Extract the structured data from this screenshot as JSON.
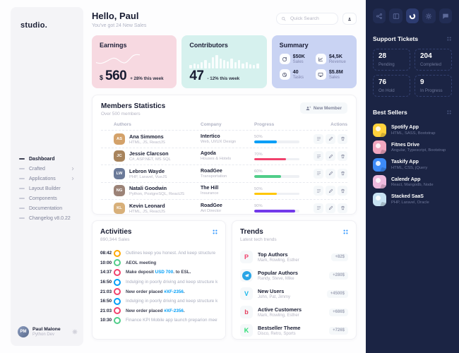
{
  "logo": "studio.",
  "nav": {
    "items": [
      {
        "label": "Dashboard",
        "active": true,
        "chevron": false
      },
      {
        "label": "Crafted",
        "active": false,
        "chevron": true
      },
      {
        "label": "Applications",
        "active": false,
        "chevron": true
      },
      {
        "label": "Layout Builder",
        "active": false,
        "chevron": false
      },
      {
        "label": "Components",
        "active": false,
        "chevron": false
      },
      {
        "label": "Documentation",
        "active": false,
        "chevron": false
      },
      {
        "label": "Changelog v8.0.22",
        "active": false,
        "chevron": false
      }
    ],
    "user": {
      "name": "Paul Malone",
      "role": "Python Dev",
      "initials": "PM"
    }
  },
  "header": {
    "greeting": "Hello, Paul",
    "subtitle": "You've got 24 New Sales",
    "search_placeholder": "Quick Search"
  },
  "cards": {
    "earnings": {
      "title": "Earnings",
      "currency": "$",
      "value": "560",
      "delta": "+ 28% this week",
      "bg": "#f7d9e1",
      "sparkline": [
        60,
        65,
        62,
        52,
        40,
        34,
        44,
        60,
        63,
        45,
        22,
        16,
        18
      ]
    },
    "contributors": {
      "title": "Contributors",
      "value": "47",
      "delta": "- 12% this week",
      "bg": "#d6f1ee",
      "bars": [
        25,
        35,
        30,
        45,
        55,
        40,
        75,
        90,
        65,
        55,
        48,
        65,
        45,
        55,
        35,
        45,
        28,
        25,
        35
      ]
    },
    "summary": {
      "title": "Summary",
      "bg": "#c9d3f3",
      "tiles": [
        {
          "icon": "sync",
          "value": "$50K",
          "label": "Sales"
        },
        {
          "icon": "chart",
          "value": "$4,5K",
          "label": "Revenue"
        },
        {
          "icon": "pie",
          "value": "40",
          "label": "Tasks"
        },
        {
          "icon": "monitor",
          "value": "$5.8M",
          "label": "Sales"
        }
      ]
    }
  },
  "members": {
    "title": "Members Statistics",
    "subtitle": "Over 500 members",
    "new_member_label": "New Member",
    "columns": {
      "authors": "Authors",
      "company": "Company",
      "progress": "Progress",
      "actions": "Actions"
    },
    "rows": [
      {
        "name": "Ana Simmons",
        "skills": "HTML, JS, ReactJS",
        "company": "Intertico",
        "field": "Web, UI/UX Design",
        "progress_label": "50%",
        "pct": 50,
        "color": "#009ef7",
        "initials": "AS",
        "avatar_bg": "#d4a26a"
      },
      {
        "name": "Jessie Clarcson",
        "skills": "C#, ASP.NET, MS SQL",
        "company": "Agoda",
        "field": "Houses & Hotels",
        "progress_label": "70%",
        "pct": 70,
        "color": "#f1416c",
        "initials": "JC",
        "avatar_bg": "#a8845c"
      },
      {
        "name": "Lebron Wayde",
        "skills": "PHP, Laravel, VueJS",
        "company": "RoadGee",
        "field": "Transportation",
        "progress_label": "60%",
        "pct": 60,
        "color": "#50cd89",
        "initials": "LW",
        "avatar_bg": "#6b7a99"
      },
      {
        "name": "Natali Goodwin",
        "skills": "Python, PostgreSQL, ReactJS",
        "company": "The Hill",
        "field": "Insurance",
        "progress_label": "50%",
        "pct": 50,
        "color": "#ffc700",
        "initials": "NG",
        "avatar_bg": "#9c8377"
      },
      {
        "name": "Kevin Leonard",
        "skills": "HTML, JS, ReactJS",
        "company": "RoadGee",
        "field": "Art Director",
        "progress_label": "90%",
        "pct": 90,
        "color": "#7239ea",
        "initials": "KL",
        "avatar_bg": "#d8b07a"
      }
    ]
  },
  "activities": {
    "title": "Activities",
    "subtitle": "890,344 Sales",
    "items": [
      {
        "time": "08:42",
        "color": "#ffa800",
        "pre": "Outlines keep you honest. And keep structure",
        "link": "",
        "post": "",
        "emphasis": false
      },
      {
        "time": "10:00",
        "color": "#50cd89",
        "pre": "AEOL meeting",
        "link": "",
        "post": "",
        "emphasis": true
      },
      {
        "time": "14:37",
        "color": "#f1416c",
        "pre": "Make deposit ",
        "link": "USD 700",
        "post": ". to ESL.",
        "emphasis": true
      },
      {
        "time": "16:50",
        "color": "#009ef7",
        "pre": "Indulging in poorly driving and keep structure keep great",
        "link": "",
        "post": "",
        "emphasis": false
      },
      {
        "time": "21:03",
        "color": "#f1416c",
        "pre": "New order placed ",
        "link": "#XF-2356",
        "post": ".",
        "emphasis": true
      },
      {
        "time": "16:50",
        "color": "#009ef7",
        "pre": "Indulging in poorly driving and keep structure keep great",
        "link": "",
        "post": "",
        "emphasis": false
      },
      {
        "time": "21:03",
        "color": "#f1416c",
        "pre": "New order placed ",
        "link": "#XF-2356",
        "post": ".",
        "emphasis": true
      },
      {
        "time": "10:30",
        "color": "#50cd89",
        "pre": "Finance KPI Mobile app launch preparion meeting",
        "link": "",
        "post": "",
        "emphasis": false
      }
    ]
  },
  "trends": {
    "title": "Trends",
    "subtitle": "Latest tech trends",
    "items": [
      {
        "brand": "producthunt",
        "glyph": "P",
        "color": "#f1416c",
        "title": "Top Authors",
        "subtitle": "Mark, Rowling, Esther",
        "badge": "+82$"
      },
      {
        "brand": "telegram",
        "glyph": "",
        "color": "#2aa5e6",
        "title": "Popular Authors",
        "subtitle": "Randy, Steve, Mike",
        "badge": "+280$"
      },
      {
        "brand": "vimeo",
        "glyph": "V",
        "color": "#1ab7ea",
        "title": "New Users",
        "subtitle": "John, Pat, Jimmy",
        "badge": "+4500$"
      },
      {
        "brand": "beats",
        "glyph": "b",
        "color": "#e4405f",
        "title": "Active Customers",
        "subtitle": "Mark, Rowling, Esther",
        "badge": "+686$"
      },
      {
        "brand": "kickstarter",
        "glyph": "K",
        "color": "#2bde73",
        "title": "Bestseller Theme",
        "subtitle": "Disco, Retro, Sports",
        "badge": "+726$"
      }
    ]
  },
  "right_panel": {
    "toolbar": [
      {
        "icon": "share",
        "active": false
      },
      {
        "icon": "layout",
        "active": false
      },
      {
        "icon": "donut",
        "active": true
      },
      {
        "icon": "gear",
        "active": false
      },
      {
        "icon": "chat",
        "active": false
      }
    ],
    "support": {
      "title": "Support Tickets",
      "tiles": [
        {
          "value": "28",
          "label": "Pending"
        },
        {
          "value": "204",
          "label": "Completed"
        },
        {
          "value": "76",
          "label": "On Hold"
        },
        {
          "value": "9",
          "label": "In Progress"
        }
      ]
    },
    "bestsellers": {
      "title": "Best Sellers",
      "items": [
        {
          "title": "Spotify App",
          "subtitle": "HTML, SASS, Bootstrap",
          "thumb": "#ffd23c"
        },
        {
          "title": "Fitnes Drive",
          "subtitle": "Angular, Typescript, Bootstrap",
          "thumb": "#f2a7c0"
        },
        {
          "title": "Taskify App",
          "subtitle": "HTML, CSS, jQuery",
          "thumb": "#3d8af7"
        },
        {
          "title": "Calendr App",
          "subtitle": "React, Mangodb, Node",
          "thumb": "#eebade"
        },
        {
          "title": "Stacked SaaS",
          "subtitle": "PHP, Laravel, Oracle",
          "thumb": "#c7e2f2"
        }
      ]
    }
  }
}
